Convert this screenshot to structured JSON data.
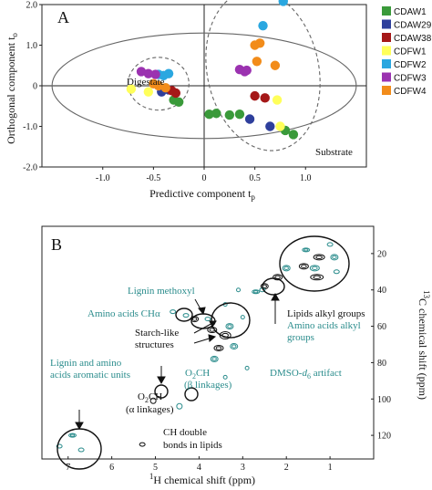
{
  "chart_data": [
    {
      "type": "scatter",
      "panel_label": "A",
      "xlabel": "Predictive component t",
      "xlabel_sub": "p",
      "ylabel": "Orthogonal component t",
      "ylabel_sub": "o",
      "xlim": [
        -1.6,
        1.6
      ],
      "ylim": [
        -2.0,
        2.0
      ],
      "xticks": [
        "-1.0",
        "-0.5",
        "0",
        "0.5",
        "1.0"
      ],
      "xtick_values": [
        -1.0,
        -0.5,
        0,
        0.5,
        1.0
      ],
      "yticks": [
        "2.0",
        "1.0",
        "0",
        "-1.0",
        "-2.0"
      ],
      "ytick_values": [
        2.0,
        1.0,
        0,
        -1.0,
        -2.0
      ],
      "annotations": [
        {
          "text": "Digestate",
          "x": -0.52,
          "y": 0.75
        },
        {
          "text": "Substrate",
          "x": 1.1,
          "y": -1.45
        }
      ],
      "series": [
        {
          "name": "CDAW1",
          "color": "#3a9a3a",
          "points": [
            [
              -0.3,
              -0.35
            ],
            [
              -0.25,
              -0.4
            ],
            [
              0.05,
              -0.7
            ],
            [
              0.12,
              -0.68
            ],
            [
              0.25,
              -0.72
            ],
            [
              0.35,
              -0.7
            ],
            [
              0.8,
              -1.1
            ],
            [
              0.88,
              -1.2
            ]
          ]
        },
        {
          "name": "CDAW29",
          "color": "#2e3f9c",
          "points": [
            [
              -0.42,
              -0.15
            ],
            [
              -0.35,
              -0.1
            ],
            [
              0.45,
              -0.82
            ],
            [
              0.65,
              -1.0
            ]
          ]
        },
        {
          "name": "CDAW38",
          "color": "#a51818",
          "points": [
            [
              -0.32,
              -0.12
            ],
            [
              -0.28,
              -0.18
            ],
            [
              0.5,
              -0.25
            ],
            [
              0.6,
              -0.3
            ]
          ]
        },
        {
          "name": "CDFW1",
          "color": "#ffff5a",
          "points": [
            [
              -0.72,
              -0.08
            ],
            [
              -0.55,
              -0.15
            ],
            [
              0.72,
              -0.35
            ],
            [
              0.75,
              -1.0
            ]
          ]
        },
        {
          "name": "CDFW2",
          "color": "#2aa7e0",
          "points": [
            [
              -0.45,
              0.28
            ],
            [
              -0.4,
              0.25
            ],
            [
              -0.35,
              0.3
            ],
            [
              0.78,
              2.08
            ],
            [
              0.58,
              1.48
            ]
          ]
        },
        {
          "name": "CDFW3",
          "color": "#9b32b0",
          "points": [
            [
              -0.62,
              0.35
            ],
            [
              -0.55,
              0.3
            ],
            [
              -0.48,
              0.28
            ],
            [
              0.35,
              0.4
            ],
            [
              0.4,
              0.35
            ],
            [
              0.42,
              0.38
            ]
          ]
        },
        {
          "name": "CDFW4",
          "color": "#f28c1a",
          "points": [
            [
              -0.5,
              0.05
            ],
            [
              -0.45,
              0.0
            ],
            [
              -0.38,
              -0.05
            ],
            [
              0.5,
              1.0
            ],
            [
              0.55,
              1.05
            ],
            [
              0.52,
              0.6
            ],
            [
              0.7,
              0.5
            ]
          ]
        }
      ]
    },
    {
      "type": "contour",
      "panel_label": "B",
      "xlabel": "H chemical shift (ppm)",
      "xlabel_sup": "1",
      "ylabel": "C chemical shift (ppm)",
      "ylabel_sup": "13",
      "xlim": [
        7.6,
        0.0
      ],
      "ylim": [
        5,
        133
      ],
      "xticks": [
        "7",
        "6",
        "5",
        "4",
        "3",
        "2",
        "1"
      ],
      "xtick_values": [
        7,
        6,
        5,
        4,
        3,
        2,
        1
      ],
      "yticks": [
        "20",
        "40",
        "60",
        "80",
        "100",
        "120"
      ],
      "ytick_values": [
        20,
        40,
        60,
        80,
        100,
        120
      ],
      "annotations": {
        "lignin_methoxyl": "Lignin methoxyl",
        "amino_ch": "Amino acids CHα",
        "starch_1": "Starch-like",
        "starch_2": "structures",
        "aromatic_1": "Lignin and amino",
        "aromatic_2": "acids aromatic units",
        "o2ch_a_1": "O",
        "o2ch_a_sub": "2",
        "o2ch_a_2": "CH",
        "o2ch_a_3": "(α linkages)",
        "o2ch_b_1": "O",
        "o2ch_b_sub": "2",
        "o2ch_b_2": "CH",
        "o2ch_b_3": "(β linkages)",
        "ch_double_1": "CH double",
        "ch_double_2": "bonds in lipids",
        "lipids_alkyl": "Lipids alkyl groups",
        "amino_alkyl_1": "Amino acids alkyl",
        "amino_alkyl_2": "groups",
        "dmso_1": "DMSO-",
        "dmso_2": "d",
        "dmso_sub": "6",
        "dmso_3": " artifact"
      }
    }
  ]
}
